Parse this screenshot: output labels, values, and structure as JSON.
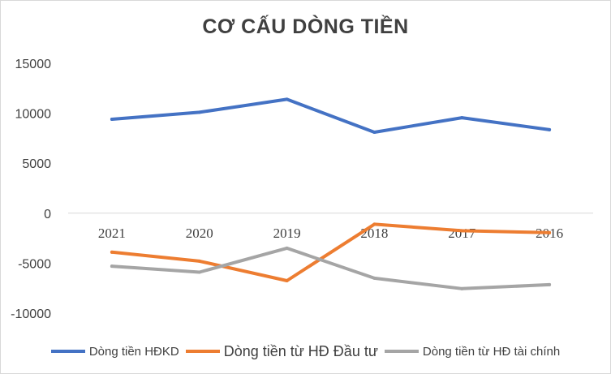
{
  "chart_data": {
    "type": "line",
    "title": "CƠ CẤU DÒNG TIỀN",
    "xlabel": "",
    "ylabel": "",
    "categories": [
      "2021",
      "2020",
      "2019",
      "2018",
      "2017",
      "2016"
    ],
    "y_ticks": [
      "15000",
      "10000",
      "5000",
      "0",
      "-5000",
      "-10000"
    ],
    "ylim": [
      -10000,
      15000
    ],
    "grid": false,
    "legend_position": "bottom",
    "series": [
      {
        "name": "Dòng tiền HĐKD",
        "color": "#4472c4",
        "values": [
          9400,
          10100,
          11400,
          8100,
          9550,
          8350
        ]
      },
      {
        "name": "Dòng tiền từ HĐ Đầu tư",
        "color": "#ed7d31",
        "values": [
          -3900,
          -4800,
          -6750,
          -1100,
          -1750,
          -1950
        ]
      },
      {
        "name": "Dòng tiền từ HĐ tài chính",
        "color": "#a5a5a5",
        "values": [
          -5300,
          -5900,
          -3500,
          -6500,
          -7550,
          -7150
        ]
      }
    ]
  }
}
